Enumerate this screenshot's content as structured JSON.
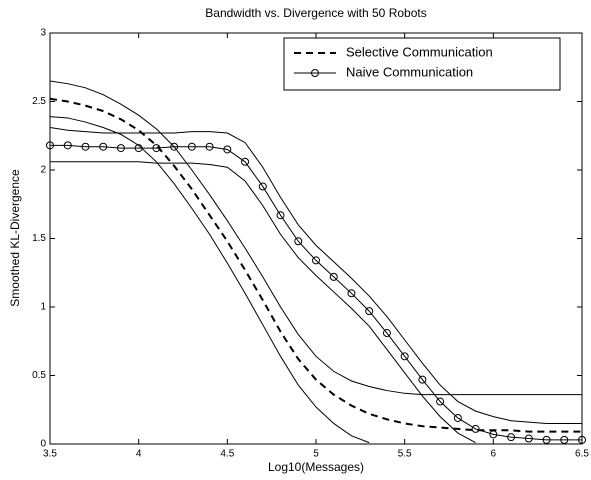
{
  "chart_data": {
    "type": "line",
    "title": "Bandwidth vs. Divergence with 50 Robots",
    "xlabel": "Log10(Messages)",
    "ylabel": "Smoothed KL-Divergence",
    "x": [
      3.5,
      3.6,
      3.7,
      3.8,
      3.9,
      4.0,
      4.1,
      4.2,
      4.3,
      4.4,
      4.5,
      4.6,
      4.7,
      4.8,
      4.9,
      5.0,
      5.1,
      5.2,
      5.3,
      5.4,
      5.5,
      5.6,
      5.7,
      5.8,
      5.9,
      6.0,
      6.1,
      6.2,
      6.3,
      6.4,
      6.5
    ],
    "xlim": [
      3.5,
      6.5
    ],
    "xticks": [
      3.5,
      4,
      4.5,
      5,
      5.5,
      6,
      6.5
    ],
    "ylim": [
      0,
      3
    ],
    "yticks": [
      0,
      0.5,
      1,
      1.5,
      2,
      2.5,
      3
    ],
    "grid": false,
    "legend": "upper right",
    "series": [
      {
        "name": "Selective Communication",
        "color": "#000000",
        "linestyle": "dashed",
        "linewidth": 2,
        "values": [
          2.52,
          2.5,
          2.47,
          2.43,
          2.37,
          2.29,
          2.18,
          2.03,
          1.86,
          1.67,
          1.48,
          1.27,
          1.05,
          0.82,
          0.62,
          0.47,
          0.36,
          0.28,
          0.22,
          0.18,
          0.15,
          0.13,
          0.12,
          0.11,
          0.1,
          0.1,
          0.1,
          0.09,
          0.09,
          0.09,
          0.09
        ]
      },
      {
        "name": "Naive Communication",
        "color": "#000000",
        "linestyle": "solid",
        "linewidth": 1,
        "marker": "circle",
        "values": [
          2.18,
          2.18,
          2.17,
          2.17,
          2.16,
          2.16,
          2.16,
          2.17,
          2.17,
          2.17,
          2.15,
          2.06,
          1.88,
          1.67,
          1.48,
          1.34,
          1.22,
          1.1,
          0.97,
          0.81,
          0.64,
          0.47,
          0.31,
          0.19,
          0.11,
          0.07,
          0.05,
          0.04,
          0.03,
          0.03,
          0.03
        ]
      },
      {
        "color": "#000000",
        "linestyle": "solid",
        "linewidth": 1,
        "values": [
          2.65,
          2.63,
          2.6,
          2.55,
          2.48,
          2.4,
          2.3,
          2.17,
          2.0,
          1.82,
          1.63,
          1.43,
          1.22,
          1.0,
          0.8,
          0.64,
          0.53,
          0.46,
          0.42,
          0.39,
          0.37,
          0.36,
          0.36,
          0.36,
          0.36,
          0.36,
          0.36,
          0.36,
          0.36,
          0.36,
          0.36
        ]
      },
      {
        "color": "#000000",
        "linestyle": "solid",
        "linewidth": 1,
        "values": [
          2.39,
          2.38,
          2.35,
          2.31,
          2.26,
          2.18,
          2.06,
          1.9,
          1.72,
          1.53,
          1.32,
          1.1,
          0.87,
          0.64,
          0.43,
          0.27,
          0.15,
          0.06,
          0.01,
          null,
          null,
          null,
          null,
          null,
          null,
          null,
          null,
          null,
          null,
          null,
          null
        ]
      },
      {
        "color": "#000000",
        "linestyle": "solid",
        "linewidth": 1,
        "values": [
          2.31,
          2.29,
          2.28,
          2.27,
          2.27,
          2.27,
          2.27,
          2.27,
          2.28,
          2.28,
          2.27,
          2.2,
          2.02,
          1.8,
          1.6,
          1.45,
          1.33,
          1.21,
          1.08,
          0.93,
          0.76,
          0.59,
          0.43,
          0.31,
          0.24,
          0.2,
          0.17,
          0.16,
          0.15,
          0.15,
          0.15
        ]
      },
      {
        "color": "#000000",
        "linestyle": "solid",
        "linewidth": 1,
        "values": [
          2.06,
          2.06,
          2.06,
          2.06,
          2.06,
          2.06,
          2.05,
          2.05,
          2.05,
          2.04,
          2.02,
          1.92,
          1.74,
          1.53,
          1.36,
          1.23,
          1.11,
          0.99,
          0.86,
          0.69,
          0.52,
          0.35,
          0.2,
          0.08,
          0.01,
          null,
          null,
          null,
          null,
          null,
          null
        ]
      }
    ]
  }
}
